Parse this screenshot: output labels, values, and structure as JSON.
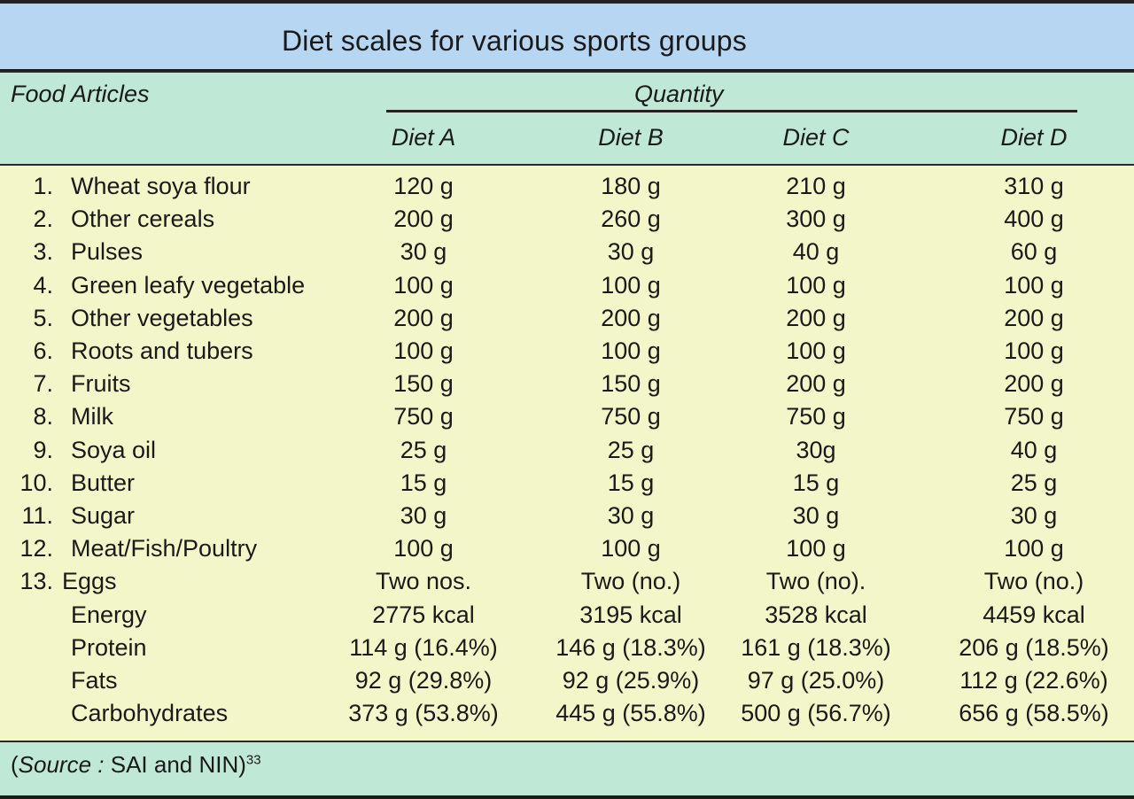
{
  "title": "Diet scales for various sports groups",
  "header": {
    "food_articles": "Food Articles",
    "quantity": "Quantity",
    "diets": [
      "Diet A",
      "Diet B",
      "Diet C",
      "Diet D"
    ]
  },
  "rows": [
    {
      "num": "1.",
      "item": "Wheat soya flour",
      "values": [
        "120 g",
        "180 g",
        "210 g",
        "310 g"
      ]
    },
    {
      "num": "2.",
      "item": "Other cereals",
      "values": [
        "200 g",
        "260 g",
        "300 g",
        "400 g"
      ]
    },
    {
      "num": "3.",
      "item": "Pulses",
      "values": [
        "30 g",
        "30 g",
        "40 g",
        "60 g"
      ]
    },
    {
      "num": "4.",
      "item": "Green leafy vegetable",
      "values": [
        "100 g",
        "100 g",
        "100 g",
        "100 g"
      ]
    },
    {
      "num": "5.",
      "item": "Other vegetables",
      "values": [
        "200 g",
        "200 g",
        "200 g",
        "200 g"
      ]
    },
    {
      "num": "6.",
      "item": "Roots and tubers",
      "values": [
        "100 g",
        "100 g",
        "100 g",
        "100 g"
      ]
    },
    {
      "num": "7.",
      "item": "Fruits",
      "values": [
        "150 g",
        "150 g",
        "200 g",
        "200 g"
      ]
    },
    {
      "num": "8.",
      "item": "Milk",
      "values": [
        "750 g",
        "750 g",
        "750 g",
        "750 g"
      ]
    },
    {
      "num": "9.",
      "item": "Soya oil",
      "values": [
        "25 g",
        "25 g",
        "30g",
        "40 g"
      ]
    },
    {
      "num": "10.",
      "item": "Butter",
      "values": [
        "15 g",
        "15 g",
        "15 g",
        "25 g"
      ]
    },
    {
      "num": "11.",
      "item": "Sugar",
      "values": [
        "30 g",
        "30 g",
        "30 g",
        "30 g"
      ]
    },
    {
      "num": "12.",
      "item": "Meat/Fish/Poultry",
      "values": [
        "100 g",
        "100 g",
        "100 g",
        "100 g"
      ]
    },
    {
      "num": "13.",
      "item": "Eggs",
      "values": [
        "Two nos.",
        "Two (no.)",
        "Two (no).",
        "Two (no.)"
      ]
    },
    {
      "num": "",
      "item": "Energy",
      "values": [
        "2775 kcal",
        "3195 kcal",
        "3528 kcal",
        "4459 kcal"
      ]
    },
    {
      "num": "",
      "item": "Protein",
      "values": [
        "114 g (16.4%)",
        "146 g (18.3%)",
        "161 g (18.3%)",
        "206 g (18.5%)"
      ]
    },
    {
      "num": "",
      "item": "Fats",
      "values": [
        "92 g (29.8%)",
        "92 g (25.9%)",
        "97 g (25.0%)",
        "112 g (22.6%)"
      ]
    },
    {
      "num": "",
      "item": "Carbohydrates",
      "values": [
        "373 g (53.8%)",
        "445 g (55.8%)",
        "500 g (56.7%)",
        "656 g (58.5%)"
      ]
    }
  ],
  "footer": {
    "open": "(",
    "source_label": "Source :",
    "source_text": " SAI and NIN)",
    "superscript": "33"
  }
}
